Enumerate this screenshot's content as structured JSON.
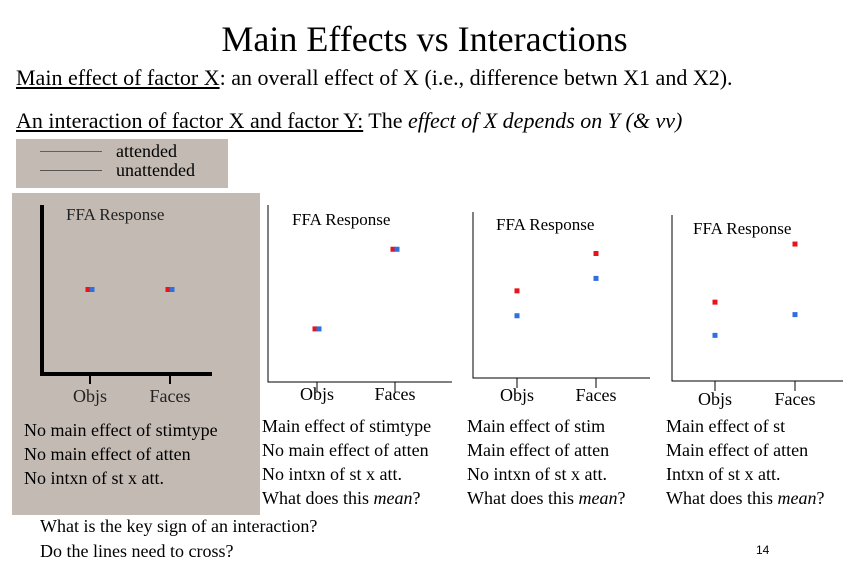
{
  "slide": {
    "title": "Main Effects vs Interactions",
    "main_effect_label": "Main effect of factor X",
    "main_effect_text": ": an overall effect of X (i.e., difference betwn X1 and X2).",
    "interaction_label": "An interaction of factor X and factor Y:",
    "interaction_text_plain": " The ",
    "interaction_text_italic": "effect of X depends on Y (& vv)",
    "page_number": "14"
  },
  "legend": {
    "items": [
      {
        "label": "attended",
        "color": "#c0392b"
      },
      {
        "label": "unattended",
        "color": "#555555"
      }
    ]
  },
  "colors": {
    "attended": "#e8141a",
    "unattended": "#2f6fe0"
  },
  "chart_data": [
    {
      "type": "scatter",
      "ylabel": "FFA Response",
      "categories": [
        "Objs",
        "Faces"
      ],
      "series": [
        {
          "name": "attended",
          "values": [
            2.0,
            2.0
          ]
        },
        {
          "name": "unattended",
          "values": [
            2.0,
            2.0
          ]
        }
      ],
      "ylim": [
        0,
        4
      ],
      "grid": false
    },
    {
      "type": "scatter",
      "ylabel": "FFA Response",
      "categories": [
        "Objs",
        "Faces"
      ],
      "series": [
        {
          "name": "attended",
          "values": [
            1.2,
            3.0
          ]
        },
        {
          "name": "unattended",
          "values": [
            1.2,
            3.0
          ]
        }
      ],
      "ylim": [
        0,
        4
      ],
      "grid": false
    },
    {
      "type": "scatter",
      "ylabel": "FFA Response",
      "categories": [
        "Objs",
        "Faces"
      ],
      "series": [
        {
          "name": "attended",
          "values": [
            2.1,
            3.0
          ]
        },
        {
          "name": "unattended",
          "values": [
            1.5,
            2.4
          ]
        }
      ],
      "ylim": [
        0,
        4
      ],
      "grid": false
    },
    {
      "type": "scatter",
      "ylabel": "FFA Response",
      "categories": [
        "Objs",
        "Faces"
      ],
      "series": [
        {
          "name": "attended",
          "values": [
            1.9,
            3.3
          ]
        },
        {
          "name": "unattended",
          "values": [
            1.1,
            1.6
          ]
        }
      ],
      "ylim": [
        0,
        4
      ],
      "grid": false
    }
  ],
  "captions": [
    {
      "lines": [
        "No main effect of stimtype",
        "No main effect of atten",
        "No intxn of st x att."
      ]
    },
    {
      "lines": [
        "Main effect of stimtype",
        "No main effect of atten",
        "No intxn of st x att."
      ],
      "question_plain": "What does this ",
      "question_italic": "mean",
      "question_end": "?"
    },
    {
      "lines": [
        "Main effect of stim",
        "Main effect of atten",
        "No intxn of st x att."
      ],
      "question_plain": "What does this ",
      "question_italic": "mean",
      "question_end": "?"
    },
    {
      "lines": [
        "Main effect of st",
        "Main effect of atten",
        "Intxn of st x att."
      ],
      "question_plain": "What does this ",
      "question_italic": "mean",
      "question_end": "?"
    }
  ],
  "questions": [
    "What is the key sign of an interaction?",
    "Do the lines need to cross?"
  ]
}
